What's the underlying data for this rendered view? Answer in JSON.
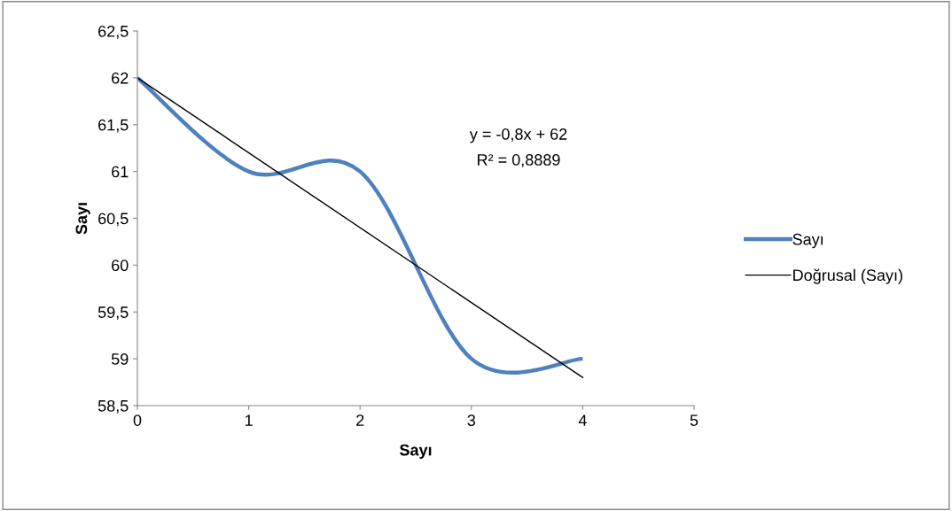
{
  "chart_data": {
    "type": "line",
    "xlabel": "Sayı",
    "ylabel": "Sayı",
    "series": [
      {
        "name": "Sayı",
        "color": "#4f81bd",
        "x": [
          0,
          1,
          2,
          3,
          4
        ],
        "values": [
          62,
          61,
          61,
          59,
          59
        ]
      },
      {
        "name": "Doğrusal (Sayı)",
        "color": "#000000",
        "x": [
          0,
          4
        ],
        "values": [
          62,
          58.8
        ]
      }
    ],
    "xlim": [
      0,
      5
    ],
    "xticks": [
      0,
      1,
      2,
      3,
      4,
      5
    ],
    "ylim": [
      58.5,
      62.5
    ],
    "yticks": [
      {
        "value": 58.5,
        "label": "58,5"
      },
      {
        "value": 59,
        "label": "59"
      },
      {
        "value": 59.5,
        "label": "59,5"
      },
      {
        "value": 60,
        "label": "60"
      },
      {
        "value": 60.5,
        "label": "60,5"
      },
      {
        "value": 61,
        "label": "61"
      },
      {
        "value": 61.5,
        "label": "61,5"
      },
      {
        "value": 62,
        "label": "62"
      },
      {
        "value": 62.5,
        "label": "62,5"
      }
    ],
    "annotations": [
      "y = -0,8x + 62",
      "R² = 0,8889"
    ],
    "legend": "right",
    "grid": false
  }
}
